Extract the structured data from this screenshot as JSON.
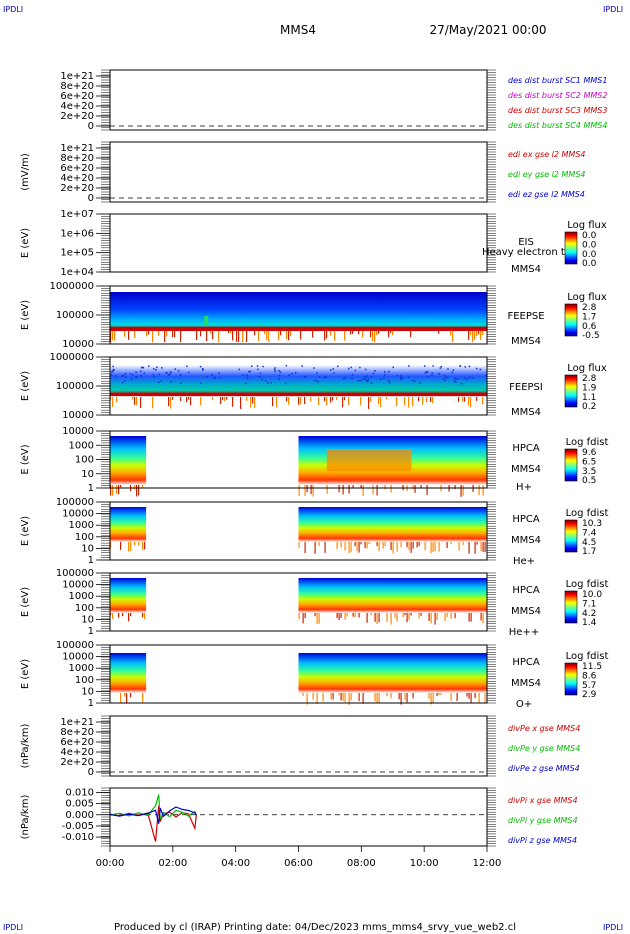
{
  "corner_left_top": "IPDLI",
  "corner_right_top": "IPDLI",
  "corner_left_bottom": "IPDLI",
  "corner_right_bottom": "IPDLI",
  "header": {
    "title": "MMS4",
    "date": "27/May/2021 00:00"
  },
  "footer": {
    "text": "Produced by cl (IRAP)   Printing date: 04/Dec/2023   mms_mms4_srvy_vue_web2.cl"
  },
  "colors": {
    "mms1": "#0000cc",
    "mms2": "#cc00cc",
    "mms3": "#cc0000",
    "mms4": "#00bb00",
    "x": "#cc0000",
    "y": "#00bb00",
    "z": "#0000cc"
  },
  "time_axis": {
    "ticks": [
      "00:00",
      "02:00",
      "04:00",
      "06:00",
      "08:00",
      "10:00",
      "12:00"
    ],
    "start_hours": 0,
    "end_hours": 12
  },
  "chart_data": [
    {
      "type": "line",
      "panel": "density",
      "ylabel": "",
      "ticks": [
        "1e+21",
        "8e+20",
        "6e+20",
        "4e+20",
        "2e+20",
        "0"
      ],
      "ylim": [
        0,
        1.1e+21
      ],
      "legend": [
        {
          "text": "des dist burst SC1 MMS1",
          "color": "#0000cc"
        },
        {
          "text": "des dist burst SC2 MMS2",
          "color": "#cc00cc"
        },
        {
          "text": "des dist burst SC3 MMS3",
          "color": "#cc0000"
        },
        {
          "text": "des dist burst SC4 MMS4",
          "color": "#00bb00"
        }
      ],
      "series": [],
      "zero_line": true
    },
    {
      "type": "line",
      "panel": "efield",
      "ylabel": "(mV/m)",
      "ticks": [
        "1e+21",
        "8e+20",
        "6e+20",
        "4e+20",
        "2e+20",
        "0"
      ],
      "ylim": [
        0,
        1.1e+21
      ],
      "legend": [
        {
          "text": "edi ex gse l2 MMS4",
          "color": "#cc0000"
        },
        {
          "text": "edi ey gse l2 MMS4",
          "color": "#00bb00"
        },
        {
          "text": "edi ez gse l2 MMS4",
          "color": "#0000cc"
        }
      ],
      "series": [],
      "zero_line": true
    },
    {
      "type": "heatmap",
      "panel": "eis",
      "ylabel": "E (eV)",
      "ticks": [
        "1e+07",
        "1e+06",
        "1e+05",
        "1e+04"
      ],
      "instrument": "EIS",
      "spacecraft": "MMS4",
      "species": "",
      "overlay_text": "Heavy electron to",
      "colorbar": {
        "title": "Log flux",
        "labels": [
          "0.0",
          "0.0",
          "0.0",
          "0.0"
        ]
      },
      "coverage": []
    },
    {
      "type": "heatmap",
      "panel": "feepse",
      "ylabel": "E (eV)",
      "ticks": [
        "1000000",
        "100000",
        "10000"
      ],
      "instrument": "FEEPSE",
      "spacecraft": "MMS4",
      "species": "",
      "colorbar": {
        "title": "Log flux",
        "labels": [
          "2.8",
          "1.7",
          "0.6",
          "-0.5"
        ]
      },
      "coverage": [
        [
          0,
          12
        ]
      ]
    },
    {
      "type": "heatmap",
      "panel": "feepsi",
      "ylabel": "E (eV)",
      "ticks": [
        "1000000",
        "100000",
        "10000"
      ],
      "instrument": "FEEPSI",
      "spacecraft": "MMS4",
      "species": "",
      "colorbar": {
        "title": "Log flux",
        "labels": [
          "2.8",
          "1.9",
          "1.1",
          "0.2"
        ]
      },
      "coverage": [
        [
          0,
          12
        ]
      ]
    },
    {
      "type": "heatmap",
      "panel": "hpca-h",
      "ylabel": "E (eV)",
      "ticks": [
        "10000",
        "1000",
        "100",
        "10",
        "1"
      ],
      "instrument": "HPCA",
      "spacecraft": "MMS4",
      "species": "H+",
      "colorbar": {
        "title": "Log fdist",
        "labels": [
          "9.6",
          "6.5",
          "3.5",
          "0.5"
        ]
      },
      "coverage": [
        [
          0,
          1.15
        ],
        [
          6.0,
          12
        ]
      ]
    },
    {
      "type": "heatmap",
      "panel": "hpca-he",
      "ylabel": "E (eV)",
      "ticks": [
        "100000",
        "10000",
        "1000",
        "100",
        "10",
        "1"
      ],
      "instrument": "HPCA",
      "spacecraft": "MMS4",
      "species": "He+",
      "colorbar": {
        "title": "Log fdist",
        "labels": [
          "10.3",
          "7.4",
          "4.5",
          "1.7"
        ]
      },
      "coverage": [
        [
          0,
          1.15
        ],
        [
          6.0,
          12
        ]
      ]
    },
    {
      "type": "heatmap",
      "panel": "hpca-hepp",
      "ylabel": "E (eV)",
      "ticks": [
        "100000",
        "10000",
        "1000",
        "100",
        "10",
        "1"
      ],
      "instrument": "HPCA",
      "spacecraft": "MMS4",
      "species": "He++",
      "colorbar": {
        "title": "Log fdist",
        "labels": [
          "10.0",
          "7.1",
          "4.2",
          "1.4"
        ]
      },
      "coverage": [
        [
          0,
          1.15
        ],
        [
          6.0,
          12
        ]
      ]
    },
    {
      "type": "heatmap",
      "panel": "hpca-o",
      "ylabel": "E (eV)",
      "ticks": [
        "100000",
        "10000",
        "1000",
        "100",
        "10",
        "1"
      ],
      "instrument": "HPCA",
      "spacecraft": "MMS4",
      "species": "O+",
      "colorbar": {
        "title": "Log fdist",
        "labels": [
          "11.5",
          "8.6",
          "5.7",
          "2.9"
        ]
      },
      "coverage": [
        [
          0,
          1.15
        ],
        [
          6.0,
          12
        ]
      ]
    },
    {
      "type": "line",
      "panel": "divpe",
      "ylabel": "(nPa/km)",
      "ticks": [
        "1e+21",
        "8e+20",
        "6e+20",
        "4e+20",
        "2e+20",
        "0"
      ],
      "ylim": [
        0,
        1.1e+21
      ],
      "legend": [
        {
          "text": "divPe x gse MMS4",
          "color": "#cc0000"
        },
        {
          "text": "divPe y gse MMS4",
          "color": "#00bb00"
        },
        {
          "text": "divPe z gse MMS4",
          "color": "#0000cc"
        }
      ],
      "series": [],
      "zero_line": true
    },
    {
      "type": "line",
      "panel": "divpi",
      "ylabel": "(nPa/km)",
      "ticks": [
        "0.010",
        "0.005",
        "0.000",
        "-0.005",
        "-0.010"
      ],
      "tick_values": [
        0.01,
        0.005,
        0,
        -0.005,
        -0.01
      ],
      "ylim": [
        -0.014,
        0.012
      ],
      "legend": [
        {
          "text": "divPi x gse MMS4",
          "color": "#cc0000"
        },
        {
          "text": "divPi y gse MMS4",
          "color": "#00bb00"
        },
        {
          "text": "divPi z gse MMS4",
          "color": "#0000cc"
        }
      ],
      "series": [
        {
          "name": "divPi x gse MMS4",
          "color": "#cc0000",
          "x": [
            0,
            0.3,
            0.6,
            0.9,
            1.2,
            1.45,
            1.55,
            1.6,
            1.7,
            1.9,
            2.1,
            2.3,
            2.5,
            2.7,
            2.75
          ],
          "y": [
            0.0003,
            -0.0004,
            0.0006,
            -0.0002,
            0.0008,
            -0.012,
            0.004,
            -0.003,
            0.0005,
            0.0012,
            -0.001,
            0.0009,
            0.0004,
            -0.006,
            0.0
          ]
        },
        {
          "name": "divPi y gse MMS4",
          "color": "#00bb00",
          "x": [
            0,
            0.3,
            0.6,
            0.9,
            1.2,
            1.45,
            1.55,
            1.6,
            1.7,
            1.9,
            2.1,
            2.3,
            2.5,
            2.7,
            2.75
          ],
          "y": [
            -0.0002,
            0.0007,
            -0.0005,
            0.0009,
            -0.0003,
            0.004,
            0.009,
            -0.002,
            0.001,
            -0.0008,
            0.002,
            0.0011,
            -0.0006,
            0.0015,
            0.0
          ]
        },
        {
          "name": "divPi z gse MMS4",
          "color": "#0000cc",
          "x": [
            0,
            0.3,
            0.6,
            0.9,
            1.2,
            1.45,
            1.55,
            1.6,
            1.7,
            1.9,
            2.1,
            2.3,
            2.5,
            2.7,
            2.75
          ],
          "y": [
            0.0001,
            -0.0006,
            0.0003,
            -0.0004,
            0.0006,
            0.002,
            -0.004,
            0.003,
            -0.0007,
            0.0018,
            0.0035,
            0.0024,
            0.0019,
            0.0008,
            0.0
          ]
        }
      ],
      "zero_line": true
    }
  ]
}
